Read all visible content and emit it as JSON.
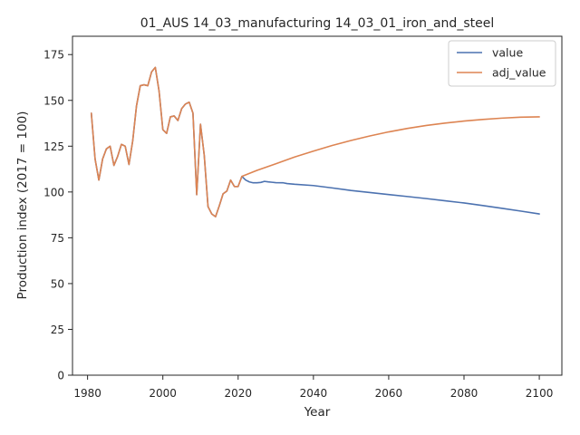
{
  "chart_data": {
    "type": "line",
    "title": "01_AUS 14_03_manufacturing 14_03_01_iron_and_steel",
    "xlabel": "Year",
    "ylabel": "Production index (2017 = 100)",
    "xlim": [
      1976,
      2106
    ],
    "ylim": [
      0,
      185
    ],
    "xticks": [
      1980,
      2000,
      2020,
      2040,
      2060,
      2080,
      2100
    ],
    "yticks": [
      0,
      25,
      50,
      75,
      100,
      125,
      150,
      175
    ],
    "legend_position": "top-right",
    "grid": false,
    "series": [
      {
        "name": "value",
        "color": "#4c72b0",
        "points": [
          [
            1981,
            143
          ],
          [
            1982,
            118
          ],
          [
            1983,
            106.5
          ],
          [
            1984,
            118
          ],
          [
            1985,
            123.5
          ],
          [
            1986,
            125
          ],
          [
            1987,
            114.5
          ],
          [
            1988,
            119.5
          ],
          [
            1989,
            126
          ],
          [
            1990,
            125
          ],
          [
            1991,
            115
          ],
          [
            1992,
            128
          ],
          [
            1993,
            147
          ],
          [
            1994,
            158
          ],
          [
            1995,
            158.5
          ],
          [
            1996,
            158
          ],
          [
            1997,
            165.5
          ],
          [
            1998,
            168
          ],
          [
            1999,
            155
          ],
          [
            2000,
            134
          ],
          [
            2001,
            132
          ],
          [
            2002,
            141
          ],
          [
            2003,
            141.5
          ],
          [
            2004,
            139
          ],
          [
            2005,
            145.5
          ],
          [
            2006,
            148
          ],
          [
            2007,
            149
          ],
          [
            2008,
            143
          ],
          [
            2009,
            98.5
          ],
          [
            2010,
            137
          ],
          [
            2011,
            120
          ],
          [
            2012,
            92
          ],
          [
            2013,
            88
          ],
          [
            2014,
            86.5
          ],
          [
            2015,
            92.5
          ],
          [
            2016,
            99
          ],
          [
            2017,
            100.5
          ],
          [
            2018,
            106.5
          ],
          [
            2019,
            103
          ],
          [
            2020,
            103
          ],
          [
            2021,
            108.5
          ],
          [
            2022,
            106.5
          ],
          [
            2023,
            105.5
          ],
          [
            2024,
            105
          ],
          [
            2025,
            105
          ],
          [
            2026,
            105.2
          ],
          [
            2027,
            105.8
          ],
          [
            2028,
            105.5
          ],
          [
            2029,
            105.3
          ],
          [
            2030,
            105.1
          ],
          [
            2032,
            105
          ],
          [
            2033,
            104.6
          ],
          [
            2035,
            104.2
          ],
          [
            2040,
            103.5
          ],
          [
            2045,
            102.2
          ],
          [
            2050,
            100.8
          ],
          [
            2055,
            99.7
          ],
          [
            2060,
            98.6
          ],
          [
            2065,
            97.5
          ],
          [
            2070,
            96.4
          ],
          [
            2075,
            95.2
          ],
          [
            2080,
            94
          ],
          [
            2085,
            92.6
          ],
          [
            2090,
            91.1
          ],
          [
            2095,
            89.6
          ],
          [
            2100,
            88
          ]
        ]
      },
      {
        "name": "adj_value",
        "color": "#dd8452",
        "points": [
          [
            1981,
            143
          ],
          [
            1982,
            118
          ],
          [
            1983,
            106.5
          ],
          [
            1984,
            118
          ],
          [
            1985,
            123.5
          ],
          [
            1986,
            125
          ],
          [
            1987,
            114.5
          ],
          [
            1988,
            119.5
          ],
          [
            1989,
            126
          ],
          [
            1990,
            125
          ],
          [
            1991,
            115
          ],
          [
            1992,
            128
          ],
          [
            1993,
            147
          ],
          [
            1994,
            158
          ],
          [
            1995,
            158.5
          ],
          [
            1996,
            158
          ],
          [
            1997,
            165.5
          ],
          [
            1998,
            168
          ],
          [
            1999,
            155
          ],
          [
            2000,
            134
          ],
          [
            2001,
            132
          ],
          [
            2002,
            141
          ],
          [
            2003,
            141.5
          ],
          [
            2004,
            139
          ],
          [
            2005,
            145.5
          ],
          [
            2006,
            148
          ],
          [
            2007,
            149
          ],
          [
            2008,
            143
          ],
          [
            2009,
            98.5
          ],
          [
            2010,
            137
          ],
          [
            2011,
            120
          ],
          [
            2012,
            92
          ],
          [
            2013,
            88
          ],
          [
            2014,
            86.5
          ],
          [
            2015,
            92.5
          ],
          [
            2016,
            99
          ],
          [
            2017,
            100.5
          ],
          [
            2018,
            106.5
          ],
          [
            2019,
            103
          ],
          [
            2020,
            103
          ],
          [
            2021,
            108.5
          ],
          [
            2025,
            111.8
          ],
          [
            2030,
            115.4
          ],
          [
            2035,
            119.1
          ],
          [
            2040,
            122.3
          ],
          [
            2045,
            125.4
          ],
          [
            2050,
            128.1
          ],
          [
            2055,
            130.6
          ],
          [
            2060,
            132.8
          ],
          [
            2065,
            134.7
          ],
          [
            2070,
            136.3
          ],
          [
            2075,
            137.6
          ],
          [
            2080,
            138.7
          ],
          [
            2085,
            139.6
          ],
          [
            2090,
            140.3
          ],
          [
            2095,
            140.8
          ],
          [
            2100,
            141
          ]
        ]
      }
    ]
  }
}
